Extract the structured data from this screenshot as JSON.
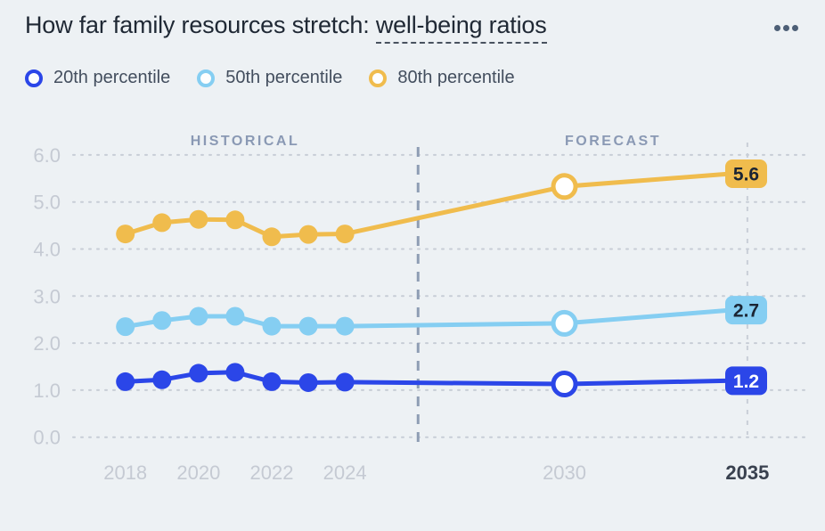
{
  "header": {
    "title_prefix": "How far family resources stretch: ",
    "title_emphasis": "well-being ratios",
    "menu_icon": "ellipsis-horizontal"
  },
  "legend": {
    "items": [
      {
        "label": "20th percentile",
        "color": "#2B46E8"
      },
      {
        "label": "50th percentile",
        "color": "#85CEF2"
      },
      {
        "label": "80th percentile",
        "color": "#F0BC4D"
      }
    ]
  },
  "chart_data": {
    "type": "line",
    "title": "How far family resources stretch: well-being ratios",
    "zones": [
      {
        "label": "HISTORICAL"
      },
      {
        "label": "FORECAST"
      }
    ],
    "divider_year": 2026,
    "ylim": [
      0,
      6
    ],
    "yticks": [
      6,
      5,
      4,
      3,
      2,
      1,
      0
    ],
    "grid": "dotted-horizontal",
    "legend_position": "top",
    "x_historical": [
      2018,
      2019,
      2020,
      2021,
      2022,
      2023,
      2024
    ],
    "xticks": [
      {
        "year": 2018,
        "emphasis": false
      },
      {
        "year": 2020,
        "emphasis": false
      },
      {
        "year": 2022,
        "emphasis": false
      },
      {
        "year": 2024,
        "emphasis": false
      },
      {
        "year": 2030,
        "emphasis": false
      },
      {
        "year": 2035,
        "emphasis": true
      }
    ],
    "series": [
      {
        "name": "80th percentile",
        "color": "#F0BC4D",
        "historical": [
          4.32,
          4.56,
          4.63,
          4.62,
          4.26,
          4.31,
          4.32
        ],
        "forecast": [
          [
            2030,
            5.33
          ]
        ],
        "end": {
          "year": 2035,
          "value": 5.6,
          "label": "5.6",
          "text_color": "#1B2534"
        }
      },
      {
        "name": "50th percentile",
        "color": "#85CEF2",
        "historical": [
          2.35,
          2.48,
          2.57,
          2.57,
          2.36,
          2.36,
          2.36
        ],
        "forecast": [
          [
            2030,
            2.42
          ]
        ],
        "end": {
          "year": 2035,
          "value": 2.7,
          "label": "2.7",
          "text_color": "#1B2534"
        }
      },
      {
        "name": "20th percentile",
        "color": "#2B46E8",
        "historical": [
          1.18,
          1.22,
          1.36,
          1.38,
          1.18,
          1.16,
          1.17
        ],
        "forecast": [
          [
            2030,
            1.13
          ]
        ],
        "end": {
          "year": 2035,
          "value": 1.2,
          "label": "1.2",
          "text_color": "#FFFFFF"
        }
      }
    ]
  }
}
